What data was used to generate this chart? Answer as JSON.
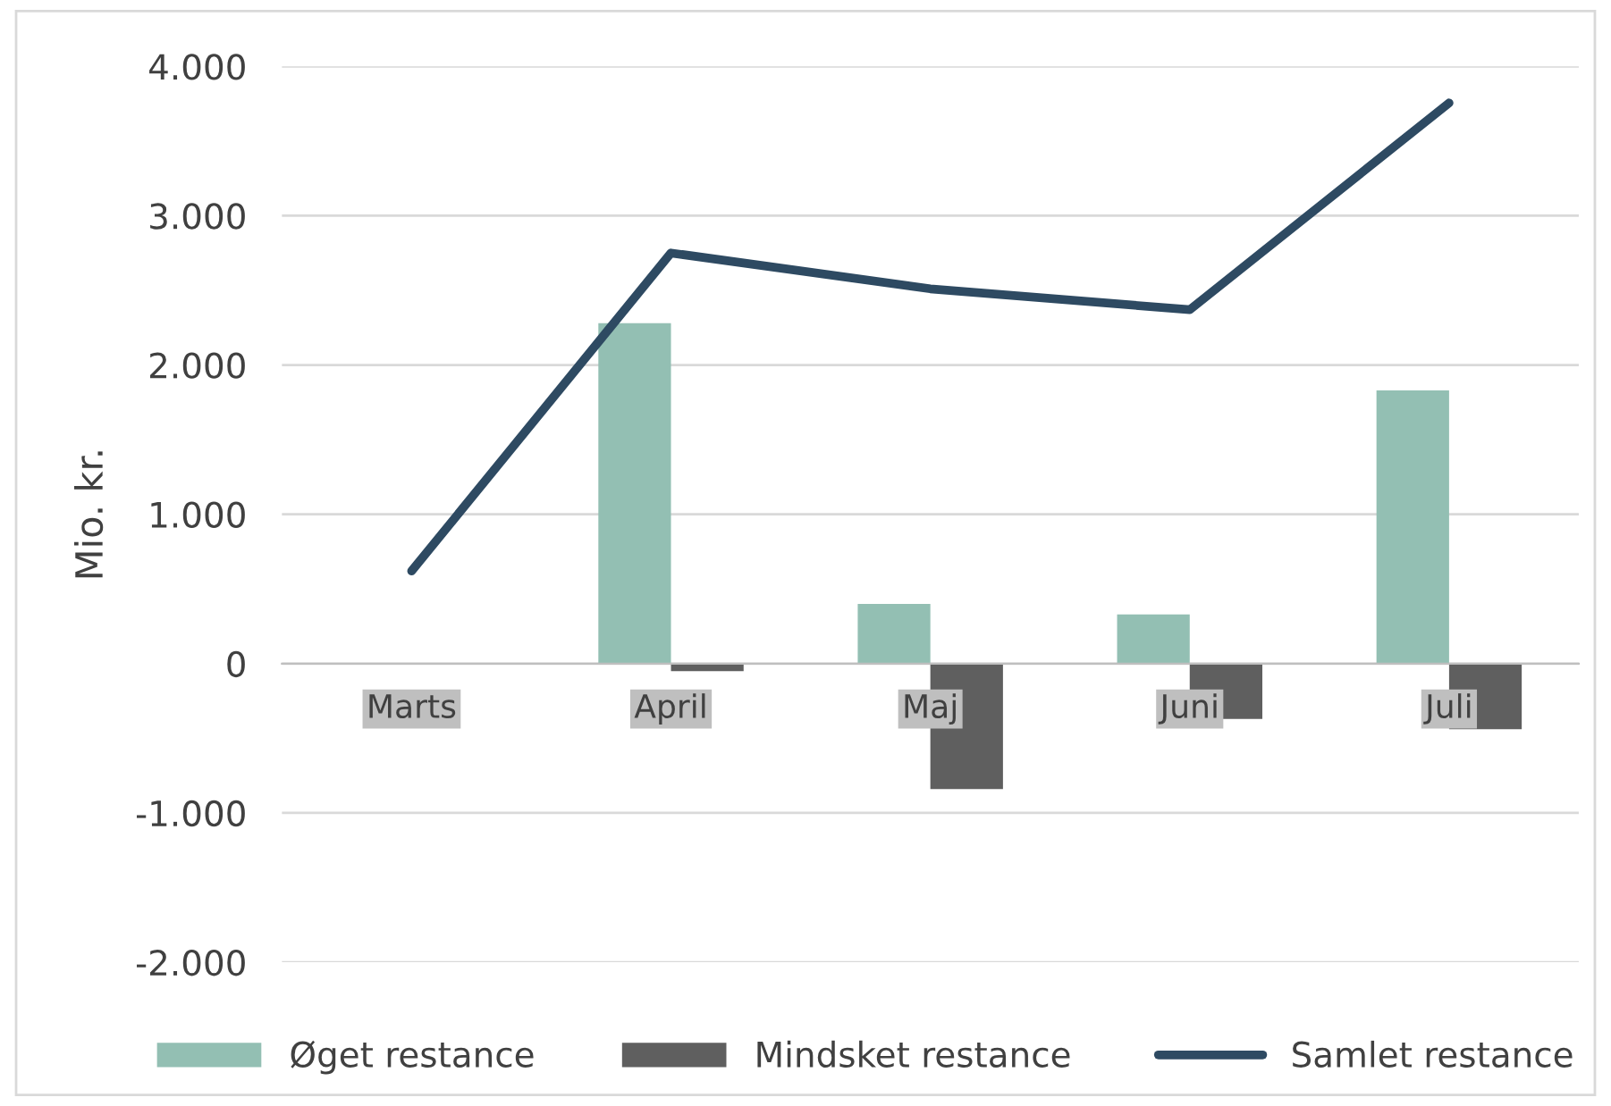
{
  "chart_data": {
    "type": "bar",
    "ylabel": "Mio. kr.",
    "categories": [
      "Marts",
      "April",
      "Maj",
      "Juni",
      "Juli"
    ],
    "series": [
      {
        "name": "Øget restance",
        "color": "#93bfb3",
        "values": [
          null,
          2280,
          400,
          330,
          1830
        ]
      },
      {
        "name": "Mindsket restance",
        "color": "#5f5f5f",
        "values": [
          null,
          -50,
          -840,
          -370,
          -440
        ]
      },
      {
        "name": "Samlet restance",
        "type": "line",
        "color": "#2e4a62",
        "values": [
          620,
          2750,
          2510,
          2370,
          3755
        ]
      }
    ],
    "ylim": [
      -2000,
      4000
    ],
    "yticks": [
      {
        "value": -2000,
        "label": "-2.000"
      },
      {
        "value": -1000,
        "label": "-1.000"
      },
      0,
      {
        "value": 1000,
        "label": "1.000"
      },
      {
        "value": 2000,
        "label": "2.000"
      },
      {
        "value": 3000,
        "label": "3.000"
      },
      {
        "value": 4000,
        "label": "4.000"
      }
    ],
    "grid": "y",
    "legend": "bottom"
  }
}
